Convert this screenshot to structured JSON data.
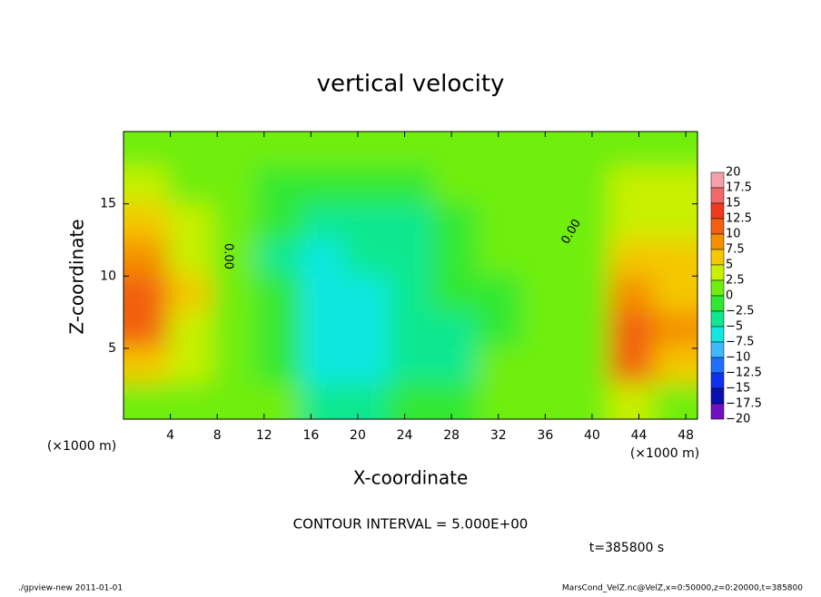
{
  "chart_data": {
    "type": "contour",
    "title": "vertical velocity",
    "x_label": "X-coordinate",
    "y_label": "Z-coordinate",
    "x_unit": "(×1000 m)",
    "y_unit": "(×1000 m)",
    "xlim": [
      0,
      49
    ],
    "ylim": [
      0.1,
      20
    ],
    "xticks": [
      4,
      8,
      12,
      16,
      20,
      24,
      28,
      32,
      36,
      40,
      44,
      48
    ],
    "yticks": [
      5,
      10,
      15
    ],
    "z_values": [
      [
        2,
        1,
        0,
        0,
        0,
        0,
        0,
        0,
        0,
        1,
        1,
        1,
        2
      ],
      [
        3,
        2,
        0,
        -1,
        -2,
        -2,
        -1,
        0,
        0,
        1,
        1,
        3,
        3
      ],
      [
        5,
        3,
        0,
        -2,
        -4,
        -3,
        -3,
        -1,
        0,
        1,
        1,
        4,
        4
      ],
      [
        8,
        4,
        0,
        -3,
        -6,
        -5,
        -4,
        -2,
        0,
        0,
        1,
        5,
        5
      ],
      [
        10,
        5,
        0,
        -2,
        -6,
        -6,
        -5,
        -2,
        -1,
        0,
        1,
        9,
        6
      ],
      [
        11,
        4,
        0,
        -2,
        -6,
        -6,
        -5,
        -3,
        -1,
        0,
        1,
        12,
        9
      ],
      [
        6,
        3,
        0,
        -1,
        -6,
        -6,
        -5,
        -3,
        0,
        0,
        1,
        11,
        7
      ],
      [
        2,
        1,
        0,
        0,
        -3,
        -3,
        -2,
        -1,
        0,
        0,
        1,
        3,
        2
      ]
    ],
    "levels": [
      20,
      17.5,
      15,
      12.5,
      10,
      7.5,
      5,
      2.5,
      0,
      {
        "value": -2.5,
        "label": "−2.5"
      },
      {
        "value": -5,
        "label": "−5"
      },
      {
        "value": -7.5,
        "label": "−7.5"
      },
      {
        "value": -10,
        "label": "−10"
      },
      {
        "value": -12.5,
        "label": "−12.5"
      },
      {
        "value": -15,
        "label": "−15"
      },
      {
        "value": -17.5,
        "label": "−17.5"
      },
      {
        "value": -20,
        "label": "−20"
      }
    ],
    "colors": [
      "#f4a0a8",
      "#f06a6a",
      "#f03a20",
      "#f26010",
      "#f49000",
      "#f4c800",
      "#c8f000",
      "#70ee10",
      "#30e830",
      "#10e890",
      "#10e8e0",
      "#40b8ff",
      "#2070ff",
      "#1030f0",
      "#0a10b0",
      "#7010c0"
    ],
    "contour_labels": [
      "0.00",
      "0.00"
    ],
    "contour_interval": "CONTOUR INTERVAL = 5.000E+00",
    "time_label": "t=385800 s",
    "footer_left": "./gpview-new  2011-01-01",
    "footer_right": "MarsCond_VelZ.nc@VelZ,x=0:50000,z=0:20000,t=385800"
  }
}
